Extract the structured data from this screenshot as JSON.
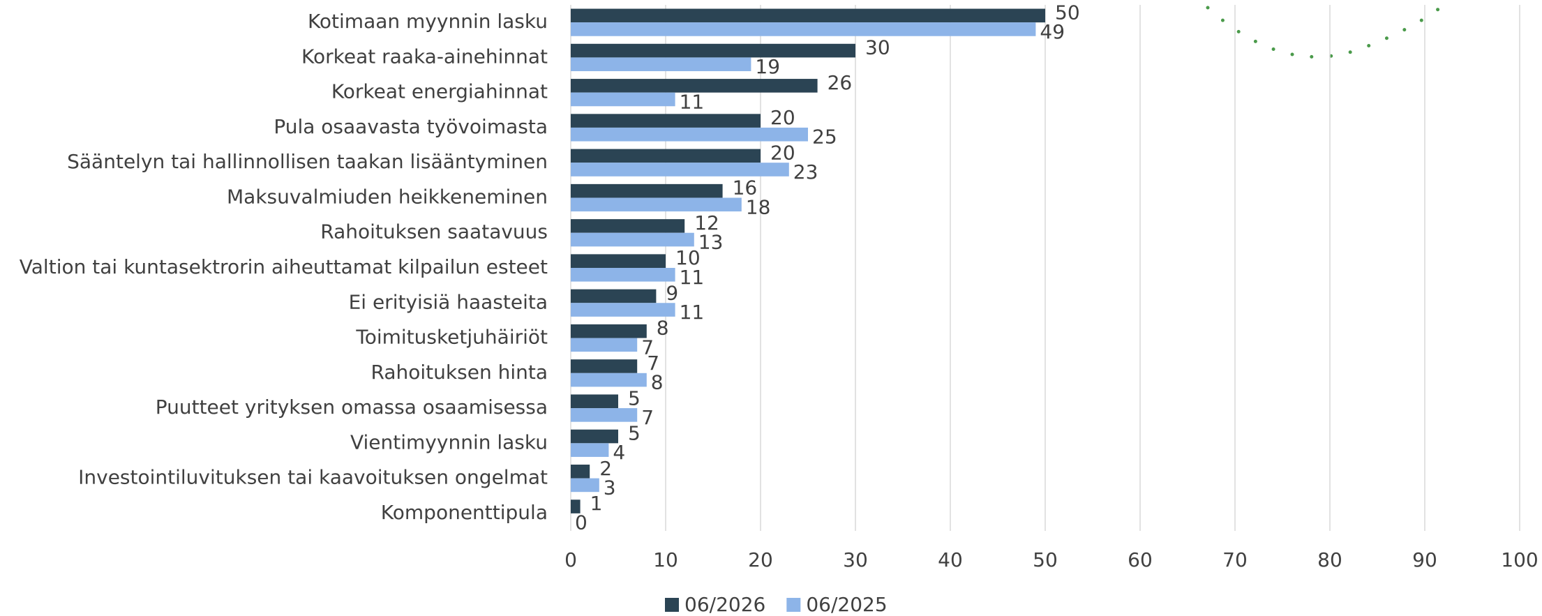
{
  "chart_data": {
    "type": "bar",
    "orientation": "horizontal",
    "categories": [
      "Kotimaan myynnin lasku",
      "Korkeat raaka-ainehinnat",
      "Korkeat energiahinnat",
      "Pula osaavasta työvoimasta",
      "Sääntelyn tai hallinnollisen taakan lisääntyminen",
      "Maksuvalmiuden heikkeneminen",
      "Rahoituksen saatavuus",
      "Valtion tai kuntasektrorin aiheuttamat kilpailun esteet",
      "Ei erityisiä haasteita",
      "Toimitusketjuhäiriöt",
      "Rahoituksen hinta",
      "Puutteet yrityksen omassa osaamisessa",
      "Vientimyynnin lasku",
      "Investointiluvituksen tai kaavoituksen ongelmat",
      "Komponenttipula"
    ],
    "series": [
      {
        "name": "06/2026",
        "color": "#2b4454",
        "values": [
          50,
          30,
          26,
          20,
          20,
          16,
          12,
          10,
          9,
          8,
          7,
          5,
          5,
          2,
          1
        ]
      },
      {
        "name": "06/2025",
        "color": "#8db4e8",
        "values": [
          49,
          19,
          11,
          25,
          23,
          18,
          13,
          11,
          11,
          7,
          8,
          7,
          4,
          3,
          0
        ]
      }
    ],
    "xlim": [
      0,
      100
    ],
    "xticks": [
      0,
      10,
      20,
      30,
      40,
      50,
      60,
      70,
      80,
      90,
      100
    ],
    "grid": true,
    "legend": "bottom"
  }
}
